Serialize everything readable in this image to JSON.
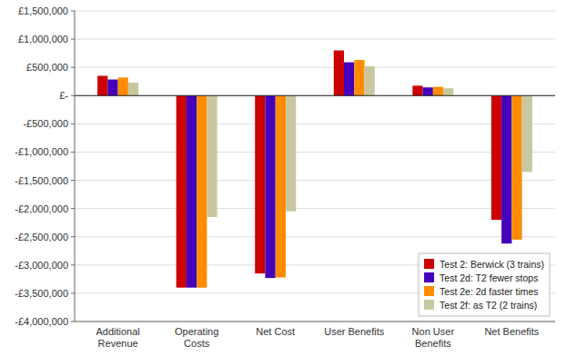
{
  "chart_data": {
    "type": "bar",
    "categories": [
      "Additional\nRevenue",
      "Operating\nCosts",
      "Net Cost",
      "User Benefits",
      "Non User\nBenefits",
      "Net Benefits"
    ],
    "series": [
      {
        "name": "Test 2: Berwick (3 trains)",
        "color": "#CC0000",
        "values": [
          350000,
          -3400000,
          -3150000,
          800000,
          175000,
          -2200000
        ]
      },
      {
        "name": "Test 2d: T2 fewer stops",
        "color": "#4400BB",
        "values": [
          285000,
          -3400000,
          -3230000,
          590000,
          145000,
          -2620000
        ]
      },
      {
        "name": "Test 2e: 2d faster times",
        "color": "#FF8C00",
        "values": [
          320000,
          -3400000,
          -3220000,
          630000,
          155000,
          -2550000
        ]
      },
      {
        "name": "Test 2f: as T2 (2 trains)",
        "color": "#C8C8A0",
        "values": [
          230000,
          -2150000,
          -2050000,
          520000,
          130000,
          -1350000
        ]
      }
    ],
    "ylim": [
      -4000000,
      1500000
    ],
    "yticks": [
      {
        "value": -4000000,
        "label": "-£4,000,000"
      },
      {
        "value": -3500000,
        "label": "-£3,500,000"
      },
      {
        "value": -3000000,
        "label": "-£3,000,000"
      },
      {
        "value": -2500000,
        "label": "-£2,500,000"
      },
      {
        "value": -2000000,
        "label": "-£2,000,000"
      },
      {
        "value": -1500000,
        "label": "-£1,500,000"
      },
      {
        "value": -1000000,
        "label": "-£1,000,000"
      },
      {
        "value": -500000,
        "label": "-£500,000"
      },
      {
        "value": 0,
        "label": "£-"
      },
      {
        "value": 500000,
        "label": "£500,000"
      },
      {
        "value": 1000000,
        "label": "£1,000,000"
      },
      {
        "value": 1500000,
        "label": "£1,500,000"
      }
    ],
    "grid": true,
    "legend": "lower right"
  }
}
